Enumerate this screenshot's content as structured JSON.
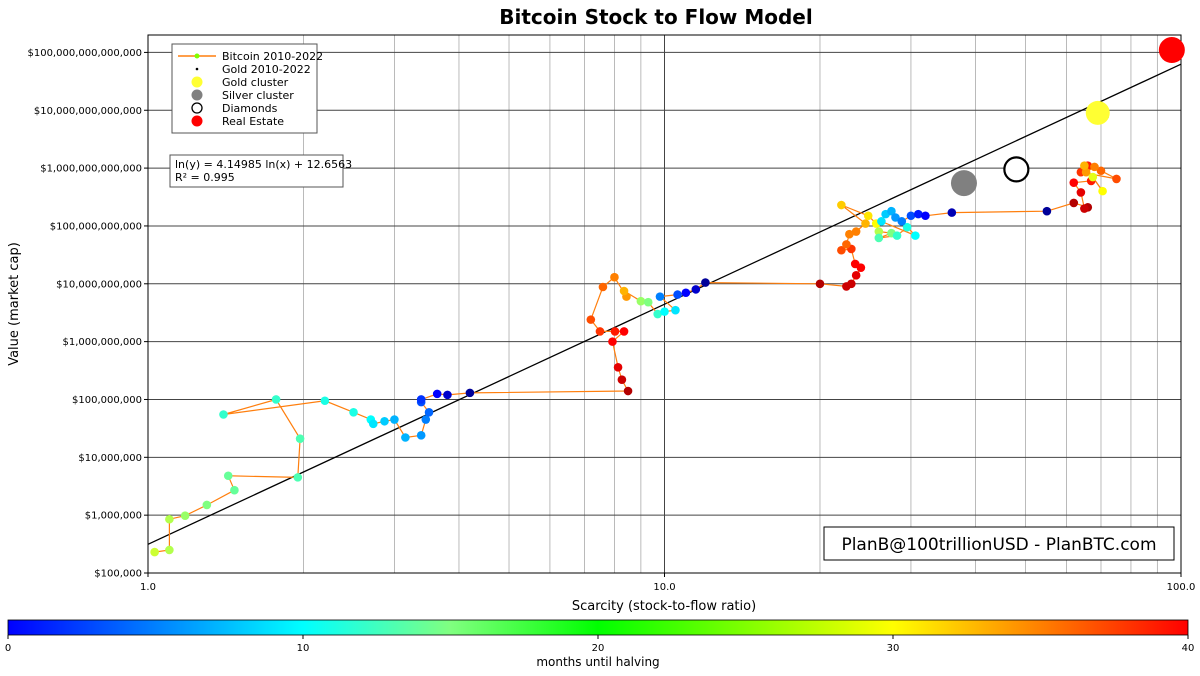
{
  "chart_data": {
    "type": "scatter",
    "title": "Bitcoin Stock to Flow Model",
    "xlabel": "Scarcity (stock-to-flow ratio)",
    "ylabel": "Value (market cap)",
    "x_scale": "log",
    "y_scale": "log",
    "xlim": [
      1,
      100
    ],
    "ylim": [
      100000,
      200000000000000
    ],
    "x_ticks": [
      1,
      10,
      100
    ],
    "x_tick_labels": [
      "1.0",
      "10.0",
      "100.0"
    ],
    "y_ticks": [
      100000,
      1000000,
      10000000,
      100000000,
      1000000000,
      10000000000,
      100000000000,
      1000000000000,
      10000000000000,
      100000000000000
    ],
    "y_tick_labels": [
      "$100,000",
      "$1,000,000",
      "$10,000,000",
      "$100,000,000",
      "$1,000,000,000",
      "$10,000,000,000",
      "$100,000,000,000",
      "$1,000,000,000,000",
      "$10,000,000,000,000",
      "$100,000,000,000,000"
    ],
    "grid": true,
    "legend_position": "top-left",
    "legend": [
      "Bitcoin 2010-2022",
      "Gold 2010-2022",
      "Gold cluster",
      "Silver cluster",
      "Diamonds",
      "Real Estate"
    ],
    "regression": {
      "text_line1": "ln(y) = 4.14985 ln(x) + 12.6563",
      "text_line2": "R² = 0.995",
      "slope": 4.14985,
      "intercept": 12.6563
    },
    "watermark": "PlanB@100trillionUSD  -  PlanBTC.com",
    "colorbar": {
      "label": "months until halving",
      "min": 0,
      "max": 40,
      "ticks": [
        0,
        10,
        20,
        30,
        40
      ]
    },
    "series": [
      {
        "name": "Bitcoin 2010-2022",
        "line_color": "#ff7f0e",
        "points": [
          [
            1.03,
            230000,
            23
          ],
          [
            1.1,
            250000,
            22
          ],
          [
            1.1,
            850000,
            22
          ],
          [
            1.18,
            980000,
            21
          ],
          [
            1.3,
            1500000,
            20
          ],
          [
            1.47,
            2700000,
            19
          ],
          [
            1.43,
            4800000,
            19
          ],
          [
            1.95,
            4500000,
            18
          ],
          [
            1.97,
            21000000,
            18
          ],
          [
            1.77,
            100000000,
            17
          ],
          [
            1.4,
            55000000,
            17
          ],
          [
            2.2,
            95000000,
            16
          ],
          [
            2.5,
            60000000,
            16
          ],
          [
            2.7,
            45000000,
            15
          ],
          [
            2.73,
            38000000,
            14
          ],
          [
            2.87,
            42000000,
            13
          ],
          [
            3.0,
            45000000,
            12
          ],
          [
            3.15,
            22000000,
            12
          ],
          [
            3.38,
            24000000,
            11
          ],
          [
            3.45,
            45000000,
            10
          ],
          [
            3.5,
            60000000,
            9
          ],
          [
            3.38,
            90000000,
            8
          ],
          [
            3.38,
            100000000,
            7
          ],
          [
            3.63,
            125000000,
            5
          ],
          [
            3.8,
            120000000,
            3
          ],
          [
            4.2,
            130000000,
            1
          ],
          [
            8.5,
            140000000,
            38
          ],
          [
            8.27,
            220000000,
            37
          ],
          [
            8.13,
            360000000,
            36
          ],
          [
            7.93,
            1000000000,
            35
          ],
          [
            8.35,
            1500000000,
            35
          ],
          [
            8.02,
            1500000000,
            34
          ],
          [
            7.5,
            1500000000,
            33
          ],
          [
            7.2,
            2400000000,
            32
          ],
          [
            7.6,
            8800000000,
            31
          ],
          [
            8.0,
            13000000000,
            30
          ],
          [
            8.44,
            6000000000,
            29
          ],
          [
            8.35,
            7500000000,
            28
          ],
          [
            9.0,
            5000000000,
            21
          ],
          [
            9.3,
            4800000000,
            20
          ],
          [
            9.7,
            3000000000,
            17
          ],
          [
            10.0,
            3300000000,
            15
          ],
          [
            10.5,
            3500000000,
            14
          ],
          [
            9.8,
            6000000000,
            10
          ],
          [
            10.6,
            6500000000,
            8
          ],
          [
            11.0,
            7000000000,
            5
          ],
          [
            11.5,
            8000000000,
            3
          ],
          [
            12.0,
            10500000000,
            1
          ],
          [
            20.0,
            10000000000,
            38
          ],
          [
            22.5,
            9000000000,
            37
          ],
          [
            23.0,
            10000000000,
            37
          ],
          [
            23.5,
            14000000000,
            36
          ],
          [
            24.0,
            19000000000,
            35
          ],
          [
            23.4,
            22000000000,
            35
          ],
          [
            23.0,
            40000000000,
            33
          ],
          [
            22.0,
            38000000000,
            32
          ],
          [
            22.5,
            48000000000,
            31
          ],
          [
            22.8,
            72000000000,
            30
          ],
          [
            23.5,
            80000000000,
            30
          ],
          [
            24.5,
            110000000000,
            28
          ],
          [
            22.0,
            230000000000,
            27
          ],
          [
            24.8,
            150000000000,
            26
          ],
          [
            25.7,
            110000000000,
            25
          ],
          [
            26.0,
            80000000000,
            22
          ],
          [
            27.5,
            75000000000,
            20
          ],
          [
            26.0,
            62000000000,
            18
          ],
          [
            28.2,
            68000000000,
            17
          ],
          [
            29.5,
            95000000000,
            16
          ],
          [
            30.6,
            68000000000,
            15
          ],
          [
            26.3,
            120000000000,
            14
          ],
          [
            26.8,
            160000000000,
            13
          ],
          [
            27.5,
            180000000000,
            12
          ],
          [
            28.0,
            140000000000,
            11
          ],
          [
            28.8,
            120000000000,
            10
          ],
          [
            30.0,
            150000000000,
            8
          ],
          [
            31.0,
            160000000000,
            6
          ],
          [
            32.0,
            150000000000,
            5
          ],
          [
            36.0,
            170000000000,
            2
          ],
          [
            55.0,
            180000000000,
            1
          ],
          [
            62.0,
            250000000000,
            38
          ],
          [
            66.0,
            210000000000,
            38
          ],
          [
            65.0,
            200000000000,
            37
          ],
          [
            64.0,
            380000000000,
            36
          ],
          [
            62.0,
            560000000000,
            35
          ],
          [
            67.0,
            600000000000,
            34
          ],
          [
            66.0,
            1100000000000,
            34
          ],
          [
            64.0,
            850000000000,
            33
          ],
          [
            75.0,
            650000000000,
            32
          ],
          [
            70.0,
            900000000000,
            31
          ],
          [
            68.0,
            1050000000000,
            30
          ],
          [
            65.5,
            850000000000,
            29
          ],
          [
            65.0,
            1100000000000,
            28
          ],
          [
            70.5,
            400000000000,
            25
          ],
          [
            67.5,
            700000000000,
            24
          ]
        ]
      }
    ],
    "gold_2010_2022": [
      [
        70.0,
        9000000000000
      ],
      [
        71.5,
        8000000000000
      ],
      [
        69.0,
        8600000000000
      ],
      [
        72.0,
        7800000000000
      ]
    ],
    "clusters": [
      {
        "name": "Gold cluster",
        "x": 69.0,
        "y": 9000000000000,
        "color": "#ffff33"
      },
      {
        "name": "Silver cluster",
        "x": 38.0,
        "y": 550000000000,
        "color": "#808080"
      },
      {
        "name": "Diamonds",
        "x": 48.0,
        "y": 950000000000,
        "color": "#ffffff"
      },
      {
        "name": "Real Estate",
        "x": 96.0,
        "y": 110000000000000,
        "color": "#ff0000"
      }
    ]
  }
}
